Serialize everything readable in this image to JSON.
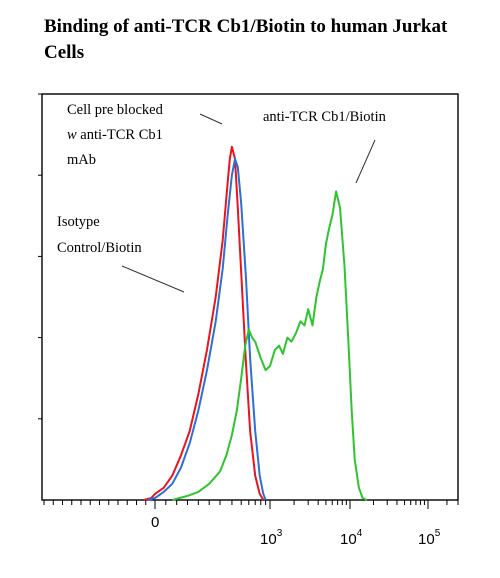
{
  "title": "Binding of anti-TCR Cb1/Biotin to human Jurkat Cells",
  "annotations": {
    "preblocked": [
      "Cell pre blocked",
      "w anti-TCR Cb1",
      "mAb"
    ],
    "isotype": [
      "Isotype",
      "Control/Biotin"
    ],
    "anti": [
      "anti-TCR Cb1/Biotin"
    ]
  },
  "chart_data": {
    "type": "line",
    "title": "Binding of anti-TCR Cb1/Biotin to human Jurkat Cells",
    "xlabel": "",
    "ylabel": "",
    "x_scale": "logicle",
    "x_ticks": [
      {
        "label": "0",
        "value": 0
      },
      {
        "label": "10",
        "exp": "3",
        "value": 1000
      },
      {
        "label": "10",
        "exp": "4",
        "value": 10000
      },
      {
        "label": "10",
        "exp": "5",
        "value": 100000
      }
    ],
    "ylim": [
      0,
      100
    ],
    "grid": false,
    "legend": "none",
    "series": [
      {
        "name": "Isotype Control/Biotin",
        "color": "#e8141e",
        "x": [
          -60,
          -20,
          0,
          40,
          80,
          120,
          160,
          200,
          240,
          280,
          320,
          360,
          380,
          400,
          430,
          460,
          500,
          560,
          620,
          700,
          780,
          850
        ],
        "y": [
          0,
          0.5,
          1.5,
          3,
          6,
          11,
          17,
          26,
          37,
          50,
          64,
          78,
          84,
          87,
          84,
          72,
          56,
          34,
          17,
          6,
          1.5,
          0
        ]
      },
      {
        "name": "Cell pre blocked w anti-TCR Cb1 mAb",
        "color": "#2e6fd6",
        "x": [
          -40,
          0,
          40,
          80,
          120,
          160,
          200,
          240,
          280,
          320,
          360,
          400,
          430,
          460,
          500,
          560,
          620,
          700,
          780,
          850,
          900
        ],
        "y": [
          0,
          0.5,
          2,
          4,
          8,
          14,
          22,
          32,
          44,
          57,
          70,
          80,
          84,
          82,
          73,
          55,
          35,
          17,
          6,
          1.5,
          0
        ]
      },
      {
        "name": "anti-TCR Cb1/Biotin",
        "color": "#2ec42e",
        "x": [
          80,
          150,
          200,
          250,
          300,
          350,
          400,
          450,
          500,
          550,
          600,
          650,
          700,
          800,
          900,
          1000,
          1150,
          1300,
          1450,
          1650,
          1850,
          2100,
          2400,
          2700,
          3000,
          3400,
          3800,
          4200,
          4600,
          5000,
          5500,
          6000,
          6700,
          7500,
          8500,
          9500,
          10500,
          11500,
          13000,
          14500,
          16500
        ],
        "y": [
          0,
          1,
          2,
          4,
          7,
          11,
          16,
          22,
          30,
          38,
          42,
          40,
          39,
          35,
          32,
          33,
          37,
          38,
          36,
          40,
          39,
          41,
          44,
          43,
          47,
          43,
          50,
          54,
          57,
          63,
          67,
          70,
          76,
          72,
          58,
          40,
          22,
          10,
          3,
          0.5,
          0
        ]
      }
    ]
  }
}
